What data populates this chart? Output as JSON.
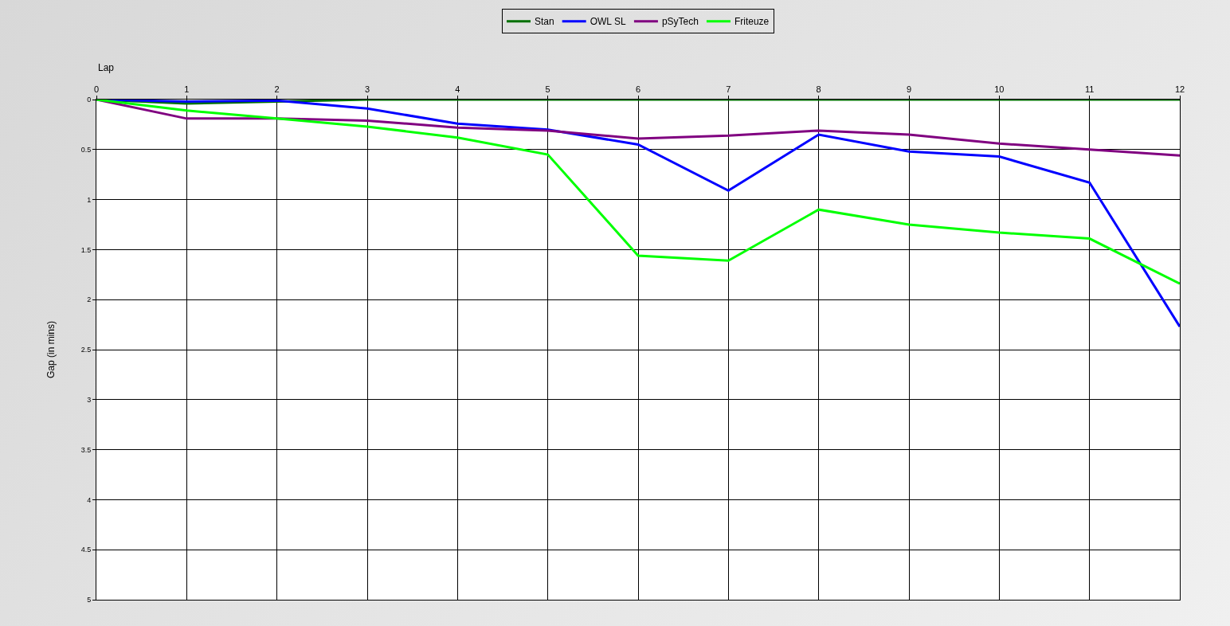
{
  "chart_data": {
    "type": "line",
    "xlabel": "Lap",
    "ylabel": "Gap (in mins)",
    "x": [
      0,
      1,
      2,
      3,
      4,
      5,
      6,
      7,
      8,
      9,
      10,
      11,
      12
    ],
    "series": [
      {
        "name": "Stan",
        "color": "#007000",
        "values": [
          0,
          0.04,
          0.02,
          0,
          0,
          0,
          0,
          0,
          0,
          0,
          0,
          0,
          0
        ]
      },
      {
        "name": "OWL SL",
        "color": "#0000ff",
        "values": [
          0,
          0.02,
          0.01,
          0.09,
          0.24,
          0.3,
          0.45,
          0.91,
          0.35,
          0.52,
          0.57,
          0.83,
          2.27
        ]
      },
      {
        "name": "pSyTech",
        "color": "#800080",
        "values": [
          0,
          0.19,
          0.19,
          0.21,
          0.28,
          0.31,
          0.39,
          0.36,
          0.31,
          0.35,
          0.44,
          0.5,
          0.56
        ]
      },
      {
        "name": "Friteuze",
        "color": "#00ff00",
        "values": [
          0,
          0.11,
          0.19,
          0.27,
          0.38,
          0.55,
          1.56,
          1.61,
          1.1,
          1.25,
          1.33,
          1.39,
          1.84
        ]
      }
    ],
    "xlim": [
      0,
      12
    ],
    "xticks": [
      0,
      1,
      2,
      3,
      4,
      5,
      6,
      7,
      8,
      9,
      10,
      11,
      12
    ],
    "ylim": [
      5,
      0
    ],
    "yticks": [
      0,
      0.5,
      1,
      1.5,
      2,
      2.5,
      3,
      3.5,
      4,
      4.5,
      5
    ],
    "grid": true,
    "legend": "top",
    "marker": "none",
    "line_style": "solid"
  }
}
